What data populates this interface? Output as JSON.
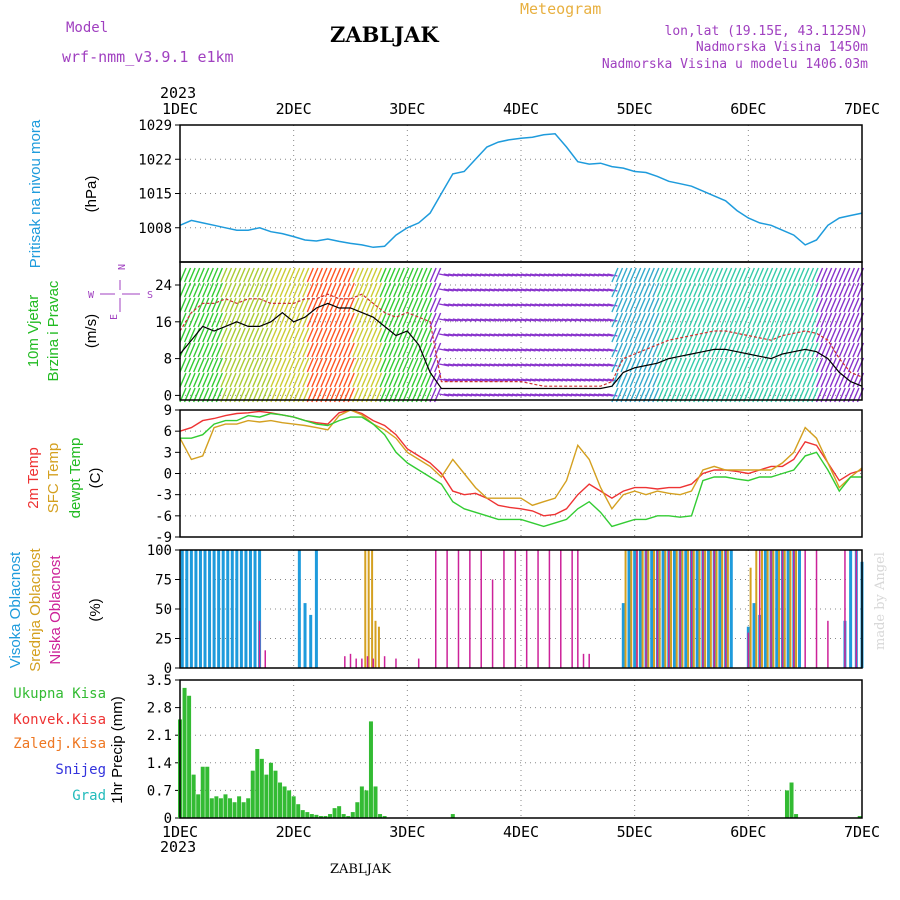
{
  "header": {
    "model_label": "Model",
    "model_name": "wrf-nmm_v3.9.1 e1km",
    "station": "ZABLJAK",
    "meteogram": "Meteogram",
    "coords": "lon,lat (19.15E, 43.1125N)",
    "altitude": "Nadmorska Visina 1450m",
    "model_altitude": "Nadmorska Visina u modelu 1406.03m",
    "year_top": "2023",
    "year_bottom": "2023",
    "footer": "ZABLJAK",
    "credit": "made by Angel"
  },
  "chart_data": [
    {
      "type": "line",
      "panel": "pressure",
      "ylabel": [
        "Pritisak na nivou mora",
        "(hPa)"
      ],
      "ylim": [
        1001,
        1029
      ],
      "yticks": [
        1008,
        1015,
        1022,
        1029
      ],
      "x_day": [
        1.0,
        1.1,
        1.2,
        1.3,
        1.4,
        1.5,
        1.6,
        1.7,
        1.8,
        1.9,
        2.0,
        2.1,
        2.2,
        2.3,
        2.4,
        2.5,
        2.6,
        2.7,
        2.8,
        2.9,
        3.0,
        3.1,
        3.2,
        3.3,
        3.4,
        3.5,
        3.6,
        3.7,
        3.8,
        3.9,
        4.0,
        4.1,
        4.2,
        4.3,
        4.4,
        4.5,
        4.6,
        4.7,
        4.8,
        4.9,
        5.0,
        5.1,
        5.2,
        5.3,
        5.4,
        5.5,
        5.6,
        5.7,
        5.8,
        5.9,
        6.0,
        6.1,
        6.2,
        6.3,
        6.4,
        6.5,
        6.6,
        6.7,
        6.8,
        6.9,
        7.0
      ],
      "series": [
        {
          "color": "#1e9bdc",
          "values": [
            1008.5,
            1009.5,
            1009,
            1008.5,
            1008,
            1007.5,
            1007.5,
            1008,
            1007.2,
            1006.8,
            1006.2,
            1005.5,
            1005.3,
            1005.7,
            1005.2,
            1004.8,
            1004.5,
            1004.0,
            1004.2,
            1006.5,
            1008.0,
            1009.0,
            1011.0,
            1015.0,
            1019.0,
            1019.5,
            1022.0,
            1024.5,
            1025.5,
            1026.0,
            1026.3,
            1026.5,
            1027.0,
            1027.2,
            1024.5,
            1021.5,
            1021.0,
            1021.2,
            1020.5,
            1020.2,
            1019.5,
            1019.3,
            1018.5,
            1017.5,
            1017.0,
            1016.5,
            1015.5,
            1014.5,
            1013.5,
            1011.5,
            1010.0,
            1009.0,
            1008.5,
            1007.5,
            1006.5,
            1004.5,
            1005.5,
            1008.5,
            1010.0,
            1010.5,
            1011.0
          ]
        }
      ]
    },
    {
      "type": "line",
      "panel": "wind",
      "ylabel": [
        "10m Vjetar",
        "Brzina i Pravac",
        "(m/s)"
      ],
      "direction_legend": [
        "W",
        "S",
        "E",
        "N"
      ],
      "ylim": [
        -1,
        29
      ],
      "yticks": [
        0,
        8,
        16,
        24
      ],
      "x_day": [
        1.0,
        1.1,
        1.2,
        1.3,
        1.4,
        1.5,
        1.6,
        1.7,
        1.8,
        1.9,
        2.0,
        2.1,
        2.2,
        2.3,
        2.4,
        2.5,
        2.6,
        2.7,
        2.8,
        2.9,
        3.0,
        3.1,
        3.2,
        3.3,
        3.4,
        3.5,
        3.6,
        3.7,
        3.8,
        3.9,
        4.0,
        4.1,
        4.2,
        4.3,
        4.4,
        4.5,
        4.6,
        4.7,
        4.8,
        4.9,
        5.0,
        5.1,
        5.2,
        5.3,
        5.4,
        5.5,
        5.6,
        5.7,
        5.8,
        5.9,
        6.0,
        6.1,
        6.2,
        6.3,
        6.4,
        6.5,
        6.6,
        6.7,
        6.8,
        6.9,
        7.0
      ],
      "series": [
        {
          "name": "mean",
          "color": "#000000",
          "values": [
            9,
            12,
            15,
            14,
            15,
            16,
            15,
            15,
            16,
            18,
            16,
            17,
            19,
            20,
            19,
            19,
            18,
            17,
            15,
            13,
            14,
            11,
            5,
            1.5,
            1.5,
            1.5,
            1.5,
            1.5,
            1.5,
            1.5,
            1.5,
            1.5,
            1.5,
            1.5,
            1.5,
            1.5,
            1.5,
            1.5,
            2,
            5,
            6,
            6.5,
            7,
            8,
            8.5,
            9,
            9.5,
            10,
            10,
            9.5,
            9,
            8.5,
            8,
            9,
            9.5,
            10,
            9.5,
            8,
            5,
            3,
            2
          ]
        },
        {
          "name": "gust",
          "color": "#cc3333",
          "values": [
            14,
            18,
            20,
            20,
            21,
            20,
            21,
            21,
            20,
            20,
            20,
            21,
            21,
            22,
            21,
            21,
            22,
            20,
            18,
            17,
            18,
            17,
            16,
            3,
            3,
            3,
            3,
            3,
            3,
            3,
            3,
            2.5,
            2,
            2,
            2,
            2,
            2,
            2,
            3,
            8,
            9,
            10,
            11,
            12,
            12.5,
            13,
            13.5,
            14,
            14,
            13.5,
            13,
            12.5,
            12,
            13,
            13.5,
            14,
            13.5,
            12,
            8,
            5,
            4
          ]
        }
      ]
    },
    {
      "type": "line",
      "panel": "temperature",
      "ylabel": [
        "2m Temp",
        "SFC Temp",
        "dewpt Temp",
        "(C)"
      ],
      "ylim": [
        -9,
        9
      ],
      "yticks": [
        -9,
        -6,
        -3,
        0,
        3,
        6,
        9
      ],
      "x_day": [
        1.0,
        1.1,
        1.2,
        1.3,
        1.4,
        1.5,
        1.6,
        1.7,
        1.8,
        1.9,
        2.0,
        2.1,
        2.2,
        2.3,
        2.4,
        2.5,
        2.6,
        2.7,
        2.8,
        2.9,
        3.0,
        3.1,
        3.2,
        3.3,
        3.4,
        3.5,
        3.6,
        3.7,
        3.8,
        3.9,
        4.0,
        4.1,
        4.2,
        4.3,
        4.4,
        4.5,
        4.6,
        4.7,
        4.8,
        4.9,
        5.0,
        5.1,
        5.2,
        5.3,
        5.4,
        5.5,
        5.6,
        5.7,
        5.8,
        5.9,
        6.0,
        6.1,
        6.2,
        6.3,
        6.4,
        6.5,
        6.6,
        6.7,
        6.8,
        6.9,
        7.0
      ],
      "series": [
        {
          "name": "2m Temp",
          "color": "#ee3333",
          "values": [
            6,
            6.5,
            7.5,
            7.8,
            8.2,
            8.5,
            8.6,
            8.8,
            8.6,
            8.3,
            8.0,
            7.5,
            7.2,
            7.0,
            8.6,
            9.0,
            8.5,
            7.5,
            6.8,
            5.5,
            3.5,
            2.5,
            1.5,
            0.0,
            -2.5,
            -3.0,
            -2.8,
            -3.5,
            -4.5,
            -4.8,
            -5.0,
            -5.3,
            -6.0,
            -5.8,
            -5.0,
            -3.0,
            -1.5,
            -2.5,
            -3.5,
            -2.5,
            -2.0,
            -2.0,
            -2.2,
            -2.0,
            -2.0,
            -1.5,
            0.0,
            0.5,
            0.5,
            0.3,
            0.0,
            0.5,
            1.0,
            1.0,
            2.0,
            4.5,
            4.0,
            1.5,
            -1.0,
            0.0,
            0.5
          ]
        },
        {
          "name": "SFC Temp",
          "color": "#d4a020",
          "values": [
            5,
            2,
            2.5,
            6.5,
            7,
            7,
            7.5,
            7.3,
            7.5,
            7.2,
            7.0,
            6.8,
            6.5,
            6.2,
            8.2,
            9.0,
            8.3,
            7.0,
            6.2,
            5.0,
            3.0,
            2.0,
            1.0,
            -0.5,
            2.0,
            0.0,
            -2.0,
            -3.5,
            -3.5,
            -3.5,
            -3.5,
            -4.5,
            -4.0,
            -3.5,
            -1.0,
            4.0,
            2.0,
            -2.0,
            -5.0,
            -3.0,
            -2.5,
            -3.0,
            -2.5,
            -2.8,
            -3.0,
            -2.5,
            0.5,
            1.0,
            0.5,
            0.5,
            0.5,
            0.5,
            0.5,
            1.5,
            3.0,
            6.5,
            5.0,
            1.5,
            -2.0,
            -0.5,
            0.8
          ]
        },
        {
          "name": "dewpt Temp",
          "color": "#33cc33",
          "values": [
            5,
            5,
            5.5,
            7,
            7.5,
            7.5,
            8.2,
            8.0,
            8.5,
            8.3,
            8.0,
            7.5,
            7.0,
            6.8,
            7.5,
            8.0,
            8.0,
            7.0,
            5.5,
            3.0,
            1.5,
            0.5,
            -0.5,
            -1.5,
            -4.0,
            -5.0,
            -5.5,
            -6.0,
            -6.5,
            -6.5,
            -6.5,
            -7.0,
            -7.5,
            -7.0,
            -6.5,
            -5.0,
            -4.0,
            -5.5,
            -7.5,
            -7.0,
            -6.5,
            -6.5,
            -6.0,
            -6.0,
            -6.2,
            -6.0,
            -1.0,
            -0.5,
            -0.5,
            -0.8,
            -1.0,
            -0.5,
            -0.5,
            0.0,
            0.5,
            2.5,
            3.0,
            0.5,
            -2.5,
            -0.5,
            -0.5
          ]
        }
      ]
    },
    {
      "type": "bar",
      "panel": "cloud",
      "ylabel": [
        "Visoka Oblacnost",
        "Srednja Oblacnost",
        "Niska Oblacnost",
        "(%)"
      ],
      "ylim": [
        0,
        100
      ],
      "yticks": [
        0,
        25,
        50,
        75,
        100
      ],
      "series": [
        {
          "name": "Visoka Oblacnost",
          "color": "#1e9bdc",
          "x_day": [
            1.02,
            1.06,
            1.1,
            1.14,
            1.18,
            1.22,
            1.26,
            1.3,
            1.34,
            1.38,
            1.42,
            1.46,
            1.5,
            1.54,
            1.58,
            1.62,
            1.66,
            1.7,
            2.05,
            2.1,
            2.15,
            2.2,
            4.9,
            4.95,
            5.0,
            5.05,
            5.1,
            5.15,
            5.2,
            5.25,
            5.3,
            5.35,
            5.4,
            5.45,
            5.5,
            5.55,
            5.6,
            5.65,
            5.7,
            5.75,
            5.8,
            5.85,
            6.0,
            6.05,
            6.1,
            6.15,
            6.2,
            6.25,
            6.3,
            6.35,
            6.4,
            6.45,
            6.85,
            6.9,
            6.95,
            7.0
          ],
          "values": [
            100,
            100,
            100,
            100,
            100,
            100,
            100,
            100,
            100,
            100,
            100,
            100,
            100,
            100,
            100,
            100,
            100,
            100,
            100,
            55,
            45,
            100,
            55,
            100,
            100,
            100,
            100,
            100,
            100,
            100,
            100,
            100,
            100,
            100,
            100,
            100,
            100,
            100,
            100,
            100,
            100,
            100,
            35,
            55,
            45,
            100,
            100,
            100,
            100,
            100,
            100,
            100,
            40,
            100,
            100,
            90
          ]
        },
        {
          "name": "Srednja Oblacnost",
          "color": "#d4a020",
          "x_day": [
            2.63,
            2.66,
            2.69,
            2.72,
            2.75,
            4.92,
            4.97,
            5.02,
            5.07,
            5.12,
            5.17,
            5.22,
            5.27,
            5.32,
            5.37,
            5.42,
            5.47,
            5.52,
            5.57,
            5.62,
            5.67,
            5.72,
            5.77,
            5.82,
            6.02,
            6.07,
            6.12,
            6.17,
            6.22,
            6.27,
            6.32,
            6.37,
            6.42
          ],
          "values": [
            100,
            100,
            100,
            40,
            35,
            100,
            100,
            100,
            100,
            100,
            100,
            100,
            100,
            100,
            100,
            100,
            100,
            100,
            100,
            100,
            100,
            100,
            100,
            100,
            85,
            100,
            100,
            100,
            100,
            100,
            100,
            100,
            100
          ]
        },
        {
          "name": "Niska Oblacnost",
          "color": "#cc2299",
          "x_day": [
            1.7,
            1.75,
            2.45,
            2.5,
            2.55,
            2.6,
            2.65,
            2.7,
            2.8,
            2.9,
            3.1,
            3.25,
            3.35,
            3.45,
            3.55,
            3.65,
            3.75,
            3.85,
            3.95,
            4.05,
            4.15,
            4.25,
            4.35,
            4.45,
            4.5,
            4.55,
            4.6,
            5.02,
            5.1,
            5.2,
            5.3,
            5.4,
            5.5,
            5.6,
            5.7,
            5.8,
            6.0,
            6.1,
            6.2,
            6.3,
            6.4,
            6.5,
            6.6,
            6.7,
            6.85,
            6.95
          ],
          "values": [
            40,
            15,
            10,
            12,
            8,
            8,
            10,
            8,
            10,
            8,
            8,
            100,
            100,
            100,
            100,
            100,
            75,
            100,
            100,
            100,
            100,
            100,
            100,
            100,
            100,
            12,
            12,
            100,
            100,
            100,
            100,
            100,
            100,
            100,
            100,
            100,
            30,
            100,
            100,
            100,
            100,
            100,
            100,
            40,
            100,
            100
          ]
        }
      ]
    },
    {
      "type": "bar",
      "panel": "precipitation",
      "ylabel": [
        "Ukupna Kisa",
        "Konvek.Kisa",
        "Zaledj.Kisa",
        "Snijeg",
        "Grad",
        "1hr Precip (mm)"
      ],
      "legend_colors": [
        "#33bb33",
        "#ee3333",
        "#ee7722",
        "#3333dd",
        "#22bbbb"
      ],
      "ylim": [
        0,
        3.5
      ],
      "yticks": [
        0,
        0.7,
        1.4,
        2.1,
        2.8,
        3.5
      ],
      "x_day": [
        1.0,
        1.04,
        1.08,
        1.12,
        1.16,
        1.2,
        1.24,
        1.28,
        1.32,
        1.36,
        1.4,
        1.44,
        1.48,
        1.52,
        1.56,
        1.6,
        1.64,
        1.68,
        1.72,
        1.76,
        1.8,
        1.84,
        1.88,
        1.92,
        1.96,
        2.0,
        2.04,
        2.08,
        2.12,
        2.16,
        2.2,
        2.24,
        2.28,
        2.32,
        2.36,
        2.4,
        2.44,
        2.48,
        2.52,
        2.56,
        2.6,
        2.64,
        2.68,
        2.72,
        2.76,
        2.8,
        2.84,
        3.4,
        6.34,
        6.38,
        6.42,
        6.98
      ],
      "values": [
        2.5,
        3.3,
        3.1,
        1.1,
        0.6,
        1.3,
        1.3,
        0.5,
        0.55,
        0.5,
        0.6,
        0.5,
        0.4,
        0.55,
        0.4,
        0.5,
        1.2,
        1.75,
        1.5,
        1.1,
        1.4,
        1.2,
        0.9,
        0.8,
        0.7,
        0.55,
        0.35,
        0.2,
        0.15,
        0.1,
        0.08,
        0.05,
        0.05,
        0.1,
        0.25,
        0.3,
        0.1,
        0.05,
        0.15,
        0.4,
        0.8,
        0.7,
        2.45,
        0.8,
        0.1,
        0.05,
        0.0,
        0.1,
        0.7,
        0.9,
        0.1,
        0.05
      ],
      "xticks": [
        "1DEC",
        "2DEC",
        "3DEC",
        "4DEC",
        "5DEC",
        "6DEC",
        "7DEC"
      ]
    }
  ]
}
